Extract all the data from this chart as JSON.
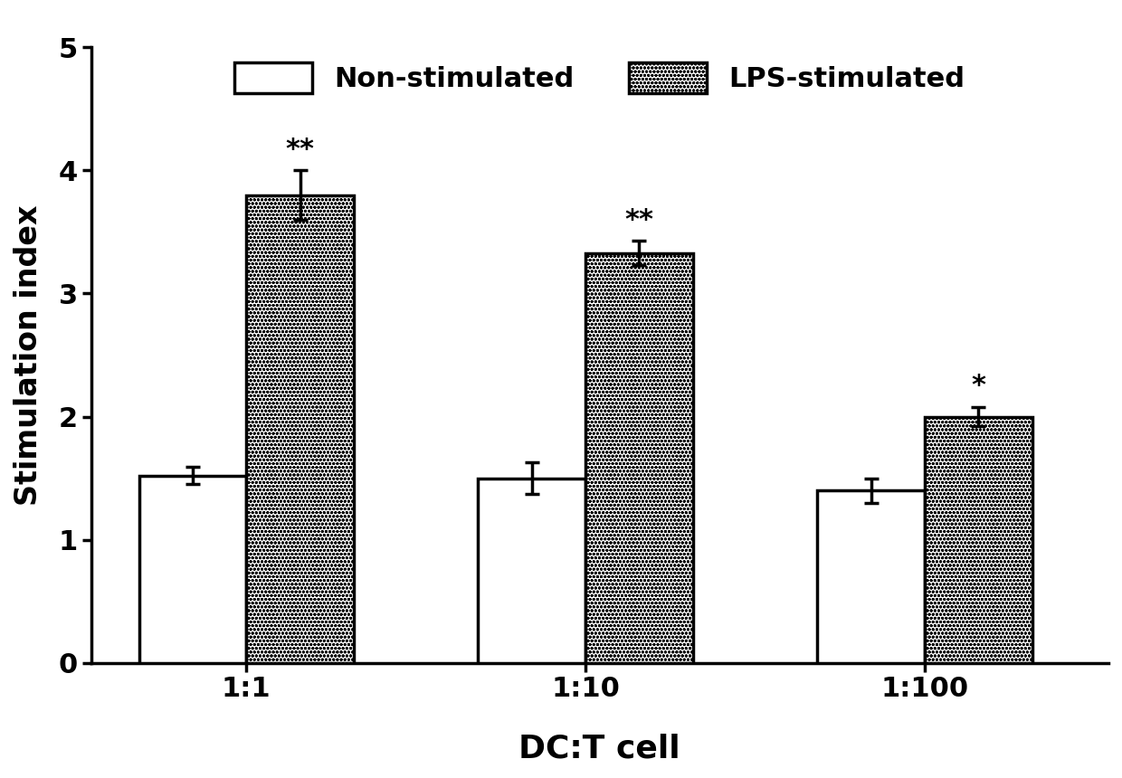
{
  "categories": [
    "1:1",
    "1:10",
    "1:100"
  ],
  "non_stimulated_values": [
    1.52,
    1.5,
    1.4
  ],
  "non_stimulated_errors": [
    0.07,
    0.13,
    0.1
  ],
  "lps_stimulated_values": [
    3.8,
    3.33,
    2.0
  ],
  "lps_stimulated_errors": [
    0.2,
    0.1,
    0.08
  ],
  "significance_lps": [
    "**",
    "**",
    "*"
  ],
  "ylabel": "Stimulation index",
  "xlabel": "DC:T cell",
  "ylim": [
    0,
    5
  ],
  "yticks": [
    0,
    1,
    2,
    3,
    4,
    5
  ],
  "bar_width": 0.38,
  "group_positions": [
    0.0,
    1.2,
    2.4
  ],
  "non_stim_color": "#ffffff",
  "bar_edgecolor": "#000000",
  "legend_labels": [
    "Non-stimulated",
    "LPS-stimulated"
  ],
  "label_fontsize": 24,
  "tick_fontsize": 22,
  "legend_fontsize": 22,
  "annot_fontsize": 22,
  "linewidth": 2.5
}
